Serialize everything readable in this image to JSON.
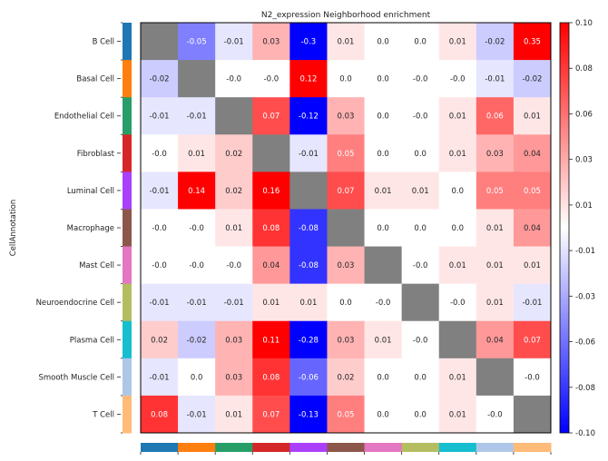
{
  "chart_data": {
    "type": "heatmap",
    "title": "N2_expression Neighborhood enrichment",
    "ylabel": "CellAnnotation",
    "xlabel": "",
    "colormap": "bwr",
    "vmin": -0.1,
    "vmax": 0.1,
    "nan_color": "#808080",
    "categories": [
      "B Cell",
      "Basal Cell",
      "Endothelial Cell",
      "Fibroblast",
      "Luminal Cell",
      "Macrophage",
      "Mast Cell",
      "Neuroendocrine Cell",
      "Plasma Cell",
      "Smooth Muscle Cell",
      "T Cell"
    ],
    "category_colors": [
      "#1f77b4",
      "#ff7f0e",
      "#279e68",
      "#d62728",
      "#aa40fc",
      "#8c564b",
      "#e377c2",
      "#b5bd61",
      "#17becf",
      "#aec7e8",
      "#ffbb78"
    ],
    "values": [
      [
        null,
        -0.05,
        -0.01,
        0.03,
        -0.3,
        0.01,
        0.0,
        0.0,
        0.01,
        -0.02,
        0.35
      ],
      [
        -0.02,
        null,
        -0.0,
        -0.0,
        0.12,
        0.0,
        0.0,
        -0.0,
        -0.0,
        -0.01,
        -0.02
      ],
      [
        -0.01,
        -0.01,
        null,
        0.07,
        -0.12,
        0.03,
        0.0,
        -0.0,
        0.01,
        0.06,
        0.01
      ],
      [
        -0.0,
        0.01,
        0.02,
        null,
        -0.01,
        0.05,
        0.0,
        0.0,
        0.01,
        0.03,
        0.04
      ],
      [
        -0.01,
        0.14,
        0.02,
        0.16,
        null,
        0.07,
        0.01,
        0.01,
        0.0,
        0.05,
        0.05
      ],
      [
        -0.0,
        -0.0,
        0.01,
        0.08,
        -0.08,
        null,
        0.0,
        0.0,
        0.0,
        0.01,
        0.04
      ],
      [
        -0.0,
        -0.0,
        -0.0,
        0.04,
        -0.08,
        0.03,
        null,
        -0.0,
        0.01,
        0.01,
        0.01
      ],
      [
        -0.01,
        -0.01,
        -0.01,
        0.01,
        0.01,
        0.0,
        -0.0,
        null,
        -0.0,
        0.01,
        -0.01
      ],
      [
        0.02,
        -0.02,
        0.03,
        0.11,
        -0.28,
        0.03,
        0.01,
        -0.0,
        null,
        0.04,
        0.07
      ],
      [
        -0.01,
        0.0,
        0.03,
        0.08,
        -0.06,
        0.02,
        0.0,
        0.0,
        0.01,
        null,
        -0.0
      ],
      [
        0.08,
        -0.01,
        0.01,
        0.07,
        -0.13,
        0.05,
        0.0,
        0.0,
        0.01,
        -0.0,
        null
      ]
    ],
    "value_labels": [
      [
        "",
        "-0.05",
        "-0.01",
        "0.03",
        "-0.3",
        "0.01",
        "0.0",
        "0.0",
        "0.01",
        "-0.02",
        "0.35"
      ],
      [
        "-0.02",
        "",
        "-0.0",
        "-0.0",
        "0.12",
        "0.0",
        "0.0",
        "-0.0",
        "-0.0",
        "-0.01",
        "-0.02"
      ],
      [
        "-0.01",
        "-0.01",
        "",
        "0.07",
        "-0.12",
        "0.03",
        "0.0",
        "-0.0",
        "0.01",
        "0.06",
        "0.01"
      ],
      [
        "-0.0",
        "0.01",
        "0.02",
        "",
        "-0.01",
        "0.05",
        "0.0",
        "0.0",
        "0.01",
        "0.03",
        "0.04"
      ],
      [
        "-0.01",
        "0.14",
        "0.02",
        "0.16",
        "",
        "0.07",
        "0.01",
        "0.01",
        "0.0",
        "0.05",
        "0.05"
      ],
      [
        "-0.0",
        "-0.0",
        "0.01",
        "0.08",
        "-0.08",
        "",
        "0.0",
        "0.0",
        "0.0",
        "0.01",
        "0.04"
      ],
      [
        "-0.0",
        "-0.0",
        "-0.0",
        "0.04",
        "-0.08",
        "0.03",
        "",
        "-0.0",
        "0.01",
        "0.01",
        "0.01"
      ],
      [
        "-0.01",
        "-0.01",
        "-0.01",
        "0.01",
        "0.01",
        "0.0",
        "-0.0",
        "",
        "-0.0",
        "0.01",
        "-0.01"
      ],
      [
        "0.02",
        "-0.02",
        "0.03",
        "0.11",
        "-0.28",
        "0.03",
        "0.01",
        "-0.0",
        "",
        "0.04",
        "0.07"
      ],
      [
        "-0.01",
        "0.0",
        "0.03",
        "0.08",
        "-0.06",
        "0.02",
        "0.0",
        "0.0",
        "0.01",
        "",
        "-0.0"
      ],
      [
        "0.08",
        "-0.01",
        "0.01",
        "0.07",
        "-0.13",
        "0.05",
        "0.0",
        "0.0",
        "0.01",
        "-0.0",
        ""
      ]
    ],
    "colorbar": {
      "ticks": [
        0.1,
        0.08,
        0.06,
        0.03,
        0.01,
        -0.01,
        -0.03,
        -0.06,
        -0.08,
        -0.1
      ],
      "tick_labels": [
        "0.10",
        "0.08",
        "0.06",
        "0.03",
        "0.01",
        "-0.01",
        "-0.03",
        "-0.06",
        "-0.08",
        "-0.10"
      ],
      "placement": "right"
    },
    "grid": false
  }
}
